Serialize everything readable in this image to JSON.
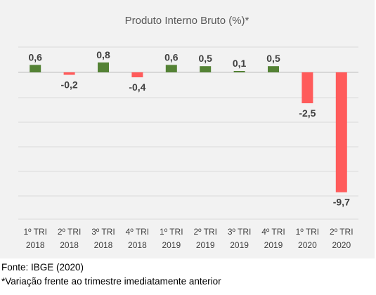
{
  "chart_data": {
    "type": "bar",
    "title": "Produto Interno Bruto (%)*",
    "categories": [
      [
        "1º TRI",
        "2018"
      ],
      [
        "2º TRI",
        "2018"
      ],
      [
        "3º TRI",
        "2018"
      ],
      [
        "4º TRI",
        "2018"
      ],
      [
        "1º TRI",
        "2019"
      ],
      [
        "2º TRI",
        "2019"
      ],
      [
        "3º TRI",
        "2019"
      ],
      [
        "4º TRI",
        "2019"
      ],
      [
        "1º TRI",
        "2020"
      ],
      [
        "2º TRI",
        "2020"
      ]
    ],
    "values": [
      0.6,
      -0.2,
      0.8,
      -0.4,
      0.6,
      0.5,
      0.1,
      0.5,
      -2.5,
      -9.7
    ],
    "value_labels": [
      "0,6",
      "-0,2",
      "0,8",
      "-0,4",
      "0,6",
      "0,5",
      "0,1",
      "0,5",
      "-2,5",
      "-9,7"
    ],
    "ylim": [
      -10.8,
      1.5
    ],
    "grid": "horizontal",
    "colors": {
      "positive": "#548235",
      "negative": "#ff5b5b",
      "background": "#f2f2f2",
      "grid": "#d9d9d9",
      "text": "#404040"
    }
  },
  "footer": {
    "source": "Fonte: IBGE (2020)",
    "note": "*Variação frente ao trimestre imediatamente anterior"
  }
}
